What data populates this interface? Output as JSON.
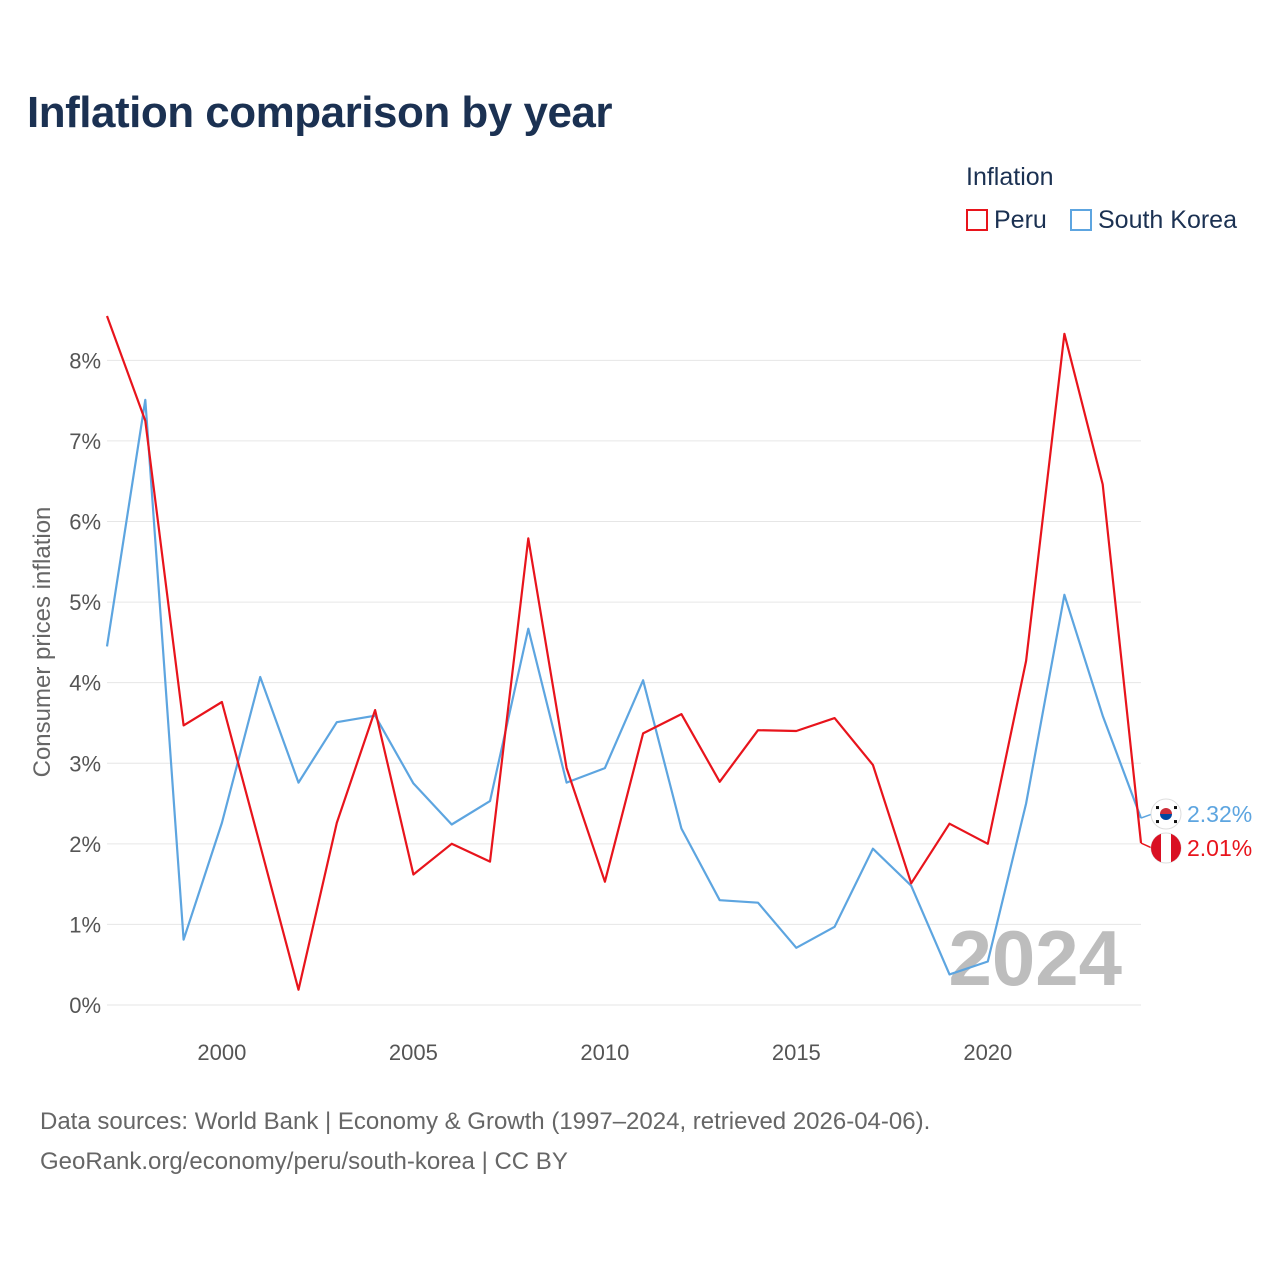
{
  "header": {
    "title": "Inflation comparison by year"
  },
  "legend": {
    "title": "Inflation",
    "items": [
      {
        "label": "Peru",
        "color": "#e8141c"
      },
      {
        "label": "South Korea",
        "color": "#5da5e0"
      }
    ]
  },
  "chart_data": {
    "type": "line",
    "title": "Inflation comparison by year",
    "xlabel": "",
    "ylabel": "Consumer prices inflation",
    "xlim": [
      1997,
      2024
    ],
    "ylim": [
      0,
      8.6
    ],
    "yticks": [
      0,
      1,
      2,
      3,
      4,
      5,
      6,
      7,
      8
    ],
    "ytick_labels": [
      "0%",
      "1%",
      "2%",
      "3%",
      "4%",
      "5%",
      "6%",
      "7%",
      "8%"
    ],
    "xticks": [
      2000,
      2005,
      2010,
      2015,
      2020
    ],
    "xtick_labels": [
      "2000",
      "2005",
      "2010",
      "2015",
      "2020"
    ],
    "grid": true,
    "legend_position": "top-right",
    "x": [
      1997,
      1998,
      1999,
      2000,
      2001,
      2002,
      2003,
      2004,
      2005,
      2006,
      2007,
      2008,
      2009,
      2010,
      2011,
      2012,
      2013,
      2014,
      2015,
      2016,
      2017,
      2018,
      2019,
      2020,
      2021,
      2022,
      2023,
      2024
    ],
    "series": [
      {
        "name": "Peru",
        "color": "#e8141c",
        "flag": "peru-flag",
        "values": [
          8.55,
          7.25,
          3.47,
          3.76,
          1.98,
          0.19,
          2.26,
          3.66,
          1.62,
          2.0,
          1.78,
          5.79,
          2.94,
          1.53,
          3.37,
          3.61,
          2.77,
          3.41,
          3.4,
          3.56,
          2.98,
          1.51,
          2.25,
          2.0,
          4.27,
          8.33,
          6.46,
          2.01
        ],
        "end_label": "2.01%"
      },
      {
        "name": "South Korea",
        "color": "#5da5e0",
        "flag": "south-korea-flag",
        "values": [
          4.45,
          7.51,
          0.81,
          2.26,
          4.07,
          2.76,
          3.51,
          3.59,
          2.75,
          2.24,
          2.53,
          4.67,
          2.76,
          2.94,
          4.03,
          2.19,
          1.3,
          1.27,
          0.71,
          0.97,
          1.94,
          1.48,
          0.38,
          0.54,
          2.5,
          5.09,
          3.59,
          2.32
        ],
        "end_label": "2.32%"
      }
    ],
    "annotations": {
      "year_watermark": "2024"
    }
  },
  "footer": {
    "source_line": "Data sources: World Bank | Economy & Growth (1997–2024, retrieved 2026-04-06).",
    "link_line": "GeoRank.org/economy/peru/south-korea | CC BY"
  }
}
